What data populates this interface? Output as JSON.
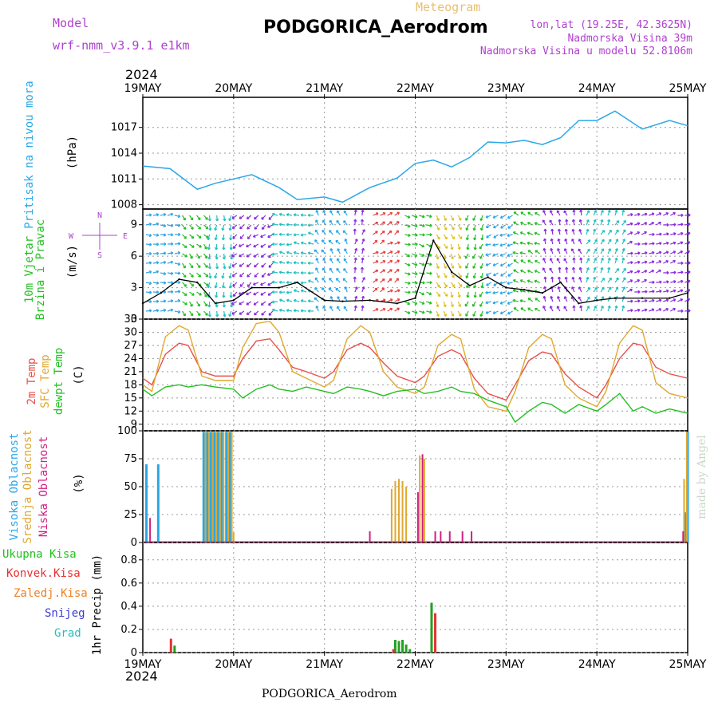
{
  "header": {
    "model_label": "Model",
    "model_name": "wrf-nmm_v3.9.1  e1km",
    "meteogram_label": "Meteogram",
    "station_title": "PODGORICA_Aerodrom",
    "lonlat": "lon,lat (19.25E, 42.3625N)",
    "elevation": "Nadmorska Visina 39m",
    "model_elevation": "Nadmorska Visina u modelu 52.8106m",
    "footer_station": "PODGORICA_Aerodrom",
    "credit": "made by Angel"
  },
  "colors": {
    "pressure": "#2aa7e8",
    "temp2m": "#e8504a",
    "sfc_temp": "#e0a830",
    "dewpoint": "#22c022",
    "cloud_high": "#2aa7e8",
    "cloud_mid": "#e0a830",
    "cloud_low": "#d02080",
    "precip_total": "#22a022",
    "precip_conv": "#e83030",
    "precip_frz": "#f08020",
    "precip_snow": "#3a3ad0",
    "precip_hail": "#20c0c0"
  },
  "time_axis": {
    "year_top": "2024",
    "year_bottom": "2024",
    "day_labels": [
      "19MAY",
      "20MAY",
      "21MAY",
      "22MAY",
      "23MAY",
      "24MAY",
      "25MAY"
    ]
  },
  "chart_data": [
    {
      "type": "line",
      "panel": "pressure",
      "ylabel_lines": [
        "Pritisak na nivou mora",
        "(hPa)"
      ],
      "ylim": [
        1007.5,
        1020.5
      ],
      "yticks": [
        "1008",
        "1011",
        "1014",
        "1017"
      ],
      "x": [
        0,
        0.3,
        0.6,
        0.8,
        1.0,
        1.2,
        1.5,
        1.7,
        2.0,
        2.2,
        2.5,
        2.8,
        3.0,
        3.2,
        3.4,
        3.6,
        3.8,
        4.0,
        4.2,
        4.4,
        4.6,
        4.8,
        5.0,
        5.2,
        5.5,
        5.8,
        6.0
      ],
      "series": [
        {
          "values": [
            1012.5,
            1012.2,
            1009.8,
            1010.5,
            1011.0,
            1011.5,
            1010.0,
            1008.6,
            1008.9,
            1008.3,
            1010.0,
            1011.1,
            1012.8,
            1013.2,
            1012.4,
            1013.5,
            1015.3,
            1015.2,
            1015.5,
            1015.0,
            1015.8,
            1017.8,
            1017.8,
            1018.9,
            1016.8,
            1017.8,
            1017.2
          ]
        }
      ]
    },
    {
      "type": "line",
      "panel": "wind",
      "ylabel_lines": [
        "10m Vjetar",
        "Brzina i Pravac",
        "(m/s)"
      ],
      "compass": {
        "n": "N",
        "e": "E",
        "w": "W",
        "s": "S"
      },
      "ylim": [
        0,
        10.5
      ],
      "yticks": [
        "0",
        "3",
        "6",
        "9"
      ],
      "x": [
        0,
        0.2,
        0.4,
        0.6,
        0.8,
        1.0,
        1.2,
        1.5,
        1.7,
        2.0,
        2.2,
        2.5,
        2.8,
        3.0,
        3.2,
        3.4,
        3.6,
        3.8,
        4.0,
        4.2,
        4.4,
        4.6,
        4.8,
        5.0,
        5.2,
        5.5,
        5.8,
        6.0
      ],
      "series": [
        {
          "name": "speed",
          "values": [
            1.5,
            2.5,
            3.8,
            3.5,
            1.5,
            1.8,
            3.0,
            3.0,
            3.5,
            1.8,
            1.7,
            1.8,
            1.5,
            2.0,
            7.5,
            4.5,
            3.2,
            4.0,
            3.0,
            2.8,
            2.5,
            3.5,
            1.5,
            1.8,
            2.0,
            2.0,
            2.0,
            2.5
          ]
        }
      ],
      "arrow_bands": [
        {
          "start": 0.0,
          "end": 0.4,
          "color": "#2aa7e8"
        },
        {
          "start": 0.4,
          "end": 0.7,
          "color": "#22c022"
        },
        {
          "start": 0.7,
          "end": 1.0,
          "color": "#22c0c0"
        },
        {
          "start": 1.0,
          "end": 1.45,
          "color": "#8a2be2"
        },
        {
          "start": 1.45,
          "end": 1.9,
          "color": "#22c0c0"
        },
        {
          "start": 1.9,
          "end": 2.3,
          "color": "#2aa7e8"
        },
        {
          "start": 2.3,
          "end": 2.5,
          "color": "#8a2be2"
        },
        {
          "start": 2.5,
          "end": 2.85,
          "color": "#e84040"
        },
        {
          "start": 2.85,
          "end": 3.2,
          "color": "#22c022"
        },
        {
          "start": 3.2,
          "end": 3.55,
          "color": "#e0c020"
        },
        {
          "start": 3.55,
          "end": 3.8,
          "color": "#22c022"
        },
        {
          "start": 3.8,
          "end": 4.1,
          "color": "#2aa7e8"
        },
        {
          "start": 4.1,
          "end": 4.4,
          "color": "#22c022"
        },
        {
          "start": 4.4,
          "end": 4.85,
          "color": "#8a2be2"
        },
        {
          "start": 4.85,
          "end": 5.3,
          "color": "#22c0c0"
        },
        {
          "start": 5.3,
          "end": 6.0,
          "color": "#8a2be2"
        }
      ]
    },
    {
      "type": "line",
      "panel": "temperature",
      "ylabel_lines": [
        "2m Temp",
        "SFC Temp",
        "dewpt Temp",
        "(C)"
      ],
      "ylim": [
        7.5,
        33
      ],
      "yticks": [
        "9",
        "12",
        "15",
        "18",
        "21",
        "24",
        "27",
        "30",
        "33"
      ],
      "x": [
        0,
        0.1,
        0.25,
        0.4,
        0.5,
        0.65,
        0.8,
        1.0,
        1.1,
        1.25,
        1.4,
        1.5,
        1.65,
        1.8,
        2.0,
        2.1,
        2.25,
        2.4,
        2.5,
        2.65,
        2.8,
        3.0,
        3.1,
        3.25,
        3.4,
        3.5,
        3.65,
        3.8,
        4.0,
        4.1,
        4.25,
        4.4,
        4.5,
        4.65,
        4.8,
        5.0,
        5.1,
        5.25,
        5.4,
        5.5,
        5.65,
        5.8,
        6.0
      ],
      "series": [
        {
          "name": "2m Temp",
          "values": [
            19.5,
            18.0,
            25.0,
            27.5,
            27.0,
            21.0,
            20.0,
            20.0,
            24.0,
            28.0,
            28.5,
            26.0,
            22.0,
            21.0,
            19.5,
            21.0,
            26.0,
            27.5,
            26.5,
            23.0,
            20.0,
            18.5,
            20.0,
            24.5,
            26.0,
            25.0,
            19.5,
            16.0,
            14.5,
            18.0,
            23.5,
            25.5,
            25.0,
            20.5,
            17.5,
            15.0,
            18.0,
            24.0,
            27.5,
            27.0,
            22.0,
            20.5,
            19.5
          ]
        },
        {
          "name": "SFC Temp",
          "values": [
            18.0,
            16.5,
            29.0,
            31.5,
            30.5,
            20.0,
            19.0,
            19.0,
            26.5,
            32.0,
            32.5,
            30.0,
            21.0,
            19.5,
            17.5,
            19.0,
            28.5,
            31.5,
            30.0,
            21.0,
            17.5,
            16.0,
            17.5,
            27.0,
            29.5,
            28.5,
            17.0,
            13.0,
            12.0,
            16.5,
            26.5,
            29.5,
            28.5,
            18.0,
            15.0,
            13.0,
            16.5,
            27.5,
            31.5,
            30.5,
            18.5,
            16.0,
            15.0
          ]
        },
        {
          "name": "dewpt Temp",
          "values": [
            17.0,
            15.5,
            17.5,
            18.0,
            17.5,
            18.0,
            17.5,
            17.0,
            15.0,
            17.0,
            18.0,
            17.0,
            16.5,
            17.5,
            16.5,
            16.0,
            17.5,
            17.0,
            16.5,
            15.5,
            16.5,
            17.0,
            16.0,
            16.5,
            17.5,
            16.5,
            16.0,
            14.5,
            13.0,
            9.5,
            12.0,
            14.0,
            13.5,
            11.5,
            13.5,
            12.0,
            13.5,
            16.0,
            12.0,
            13.0,
            11.5,
            12.5,
            11.5
          ]
        }
      ]
    },
    {
      "type": "bar",
      "panel": "clouds",
      "ylabel_lines": [
        "Visoka Oblacnost",
        "Srednja Oblacnost",
        "Niska Oblacnost",
        "(%)"
      ],
      "ylim": [
        0,
        100
      ],
      "yticks": [
        "0",
        "25",
        "50",
        "75",
        "100"
      ],
      "series": [
        {
          "name": "Visoka Oblacnost",
          "x": [
            0.04,
            0.17,
            0.67,
            0.71,
            0.75,
            0.79,
            0.83,
            0.87,
            0.92,
            0.96,
            5.97,
            6.0
          ],
          "values": [
            70,
            70,
            99,
            99,
            99,
            99,
            99,
            99,
            99,
            99,
            27,
            99
          ]
        },
        {
          "name": "Srednja Oblacnost",
          "x": [
            0.69,
            0.73,
            0.77,
            0.81,
            0.85,
            0.89,
            0.94,
            0.98,
            1.0,
            2.74,
            2.78,
            2.82,
            2.86,
            2.9,
            3.05,
            3.1,
            5.96,
            5.99
          ],
          "values": [
            99,
            99,
            99,
            99,
            99,
            99,
            99,
            99,
            9,
            48,
            55,
            57,
            55,
            50,
            78,
            75,
            57,
            99
          ]
        },
        {
          "name": "Niska Oblacnost",
          "x": [
            0.08,
            2.5,
            3.03,
            3.08,
            3.22,
            3.28,
            3.38,
            3.52,
            3.62,
            5.95
          ],
          "values": [
            22,
            10,
            45,
            79,
            10,
            10,
            10,
            10,
            10,
            10
          ]
        }
      ]
    },
    {
      "type": "bar",
      "panel": "precipitation",
      "ylabel_lines": [
        "1hr Precip (mm)"
      ],
      "legend": [
        "Ukupna Kisa",
        "Konvek.Kisa",
        "Zaledj.Kisa",
        "Snijeg",
        "Grad"
      ],
      "ylim": [
        0,
        0.95
      ],
      "yticks": [
        "0",
        "0.2",
        "0.4",
        "0.6",
        "0.8"
      ],
      "series": [
        {
          "name": "Ukupna Kisa",
          "x": [
            0.35,
            2.78,
            2.82,
            2.86,
            2.9,
            2.94,
            3.18
          ],
          "values": [
            0.06,
            0.11,
            0.1,
            0.11,
            0.07,
            0.03,
            0.43
          ]
        },
        {
          "name": "Konvek.Kisa",
          "x": [
            0.31,
            2.76,
            3.22
          ],
          "values": [
            0.12,
            0.03,
            0.34
          ]
        }
      ]
    }
  ]
}
